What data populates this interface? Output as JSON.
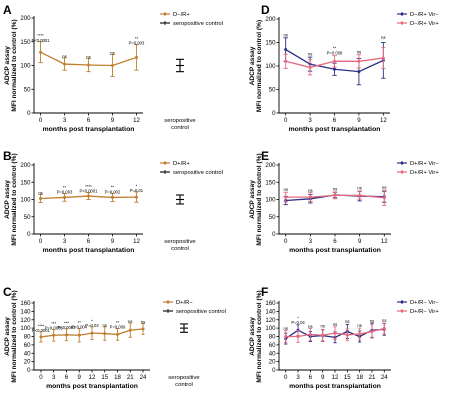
{
  "chart_data": [
    {
      "panel": "A",
      "type": "line",
      "ylabel": [
        "ADCP assay",
        "MFI normalized to control (%)"
      ],
      "xlabel": "months post transplantation",
      "ylim": [
        0,
        200
      ],
      "yticks": [
        0,
        50,
        100,
        150,
        200
      ],
      "x": [
        0,
        3,
        6,
        9,
        12
      ],
      "xticklabels": [
        "0",
        "3",
        "6",
        "9",
        "12"
      ],
      "series": [
        {
          "name": "D−/R+",
          "color": "#C07F2E",
          "values": [
            128,
            103,
            101,
            100,
            117
          ],
          "errors": [
            22,
            13,
            14,
            23,
            27
          ]
        }
      ],
      "control": {
        "label": [
          "seropositive",
          "control"
        ],
        "value": 100,
        "error": 13
      },
      "legend": {
        "series": [
          "D−/R+"
        ],
        "control": "seropositive control"
      },
      "annotations": [
        {
          "x": 0,
          "y": 150,
          "lines": [
            "****",
            "P<0.0001"
          ]
        },
        {
          "x": 3,
          "y": 116,
          "lines": [
            "ns"
          ]
        },
        {
          "x": 6,
          "y": 115,
          "lines": [
            "ns"
          ]
        },
        {
          "x": 9,
          "y": 123,
          "lines": [
            "ns"
          ]
        },
        {
          "x": 12,
          "y": 144,
          "lines": [
            "**",
            "P=0.003"
          ]
        }
      ]
    },
    {
      "panel": "B",
      "type": "line",
      "ylabel": [
        "ADCP assay",
        "MFI normalized to control (%)"
      ],
      "xlabel": "months post transplantation",
      "ylim": [
        0,
        200
      ],
      "yticks": [
        0,
        50,
        100,
        150,
        200
      ],
      "x": [
        0,
        3,
        6,
        9,
        12
      ],
      "xticklabels": [
        "0",
        "3",
        "6",
        "9",
        "12"
      ],
      "series": [
        {
          "name": "D+/R+",
          "color": "#C07F2E",
          "values": [
            103,
            106,
            110,
            106,
            107
          ],
          "errors": [
            12,
            11,
            10,
            12,
            15
          ]
        }
      ],
      "control": {
        "label": [
          "seropositive",
          "control"
        ],
        "value": 100,
        "error": 13
      },
      "legend": {
        "series": [
          "D+/R+"
        ],
        "control": "seropositive control"
      },
      "annotations": [
        {
          "x": 0,
          "y": 115,
          "lines": [
            "ns"
          ]
        },
        {
          "x": 3,
          "y": 117,
          "lines": [
            "**",
            "P=0.003"
          ]
        },
        {
          "x": 6,
          "y": 120,
          "lines": [
            "****",
            "P<0.0001"
          ]
        },
        {
          "x": 9,
          "y": 118,
          "lines": [
            "**",
            "P=0.002"
          ]
        },
        {
          "x": 12,
          "y": 122,
          "lines": [
            "*",
            "P=0.01"
          ]
        }
      ]
    },
    {
      "panel": "C",
      "type": "line",
      "ylabel": [
        "ADCP assay",
        "MFI normalized to control (%)"
      ],
      "xlabel": "months post transplantation",
      "ylim": [
        0,
        160
      ],
      "yticks": [
        0,
        20,
        40,
        60,
        80,
        100,
        120,
        140,
        160
      ],
      "x": [
        0,
        3,
        6,
        9,
        12,
        15,
        18,
        21,
        24
      ],
      "xticklabels": [
        "0",
        "3",
        "6",
        "9",
        "12",
        "15",
        "18",
        "21",
        "24"
      ],
      "series": [
        {
          "name": "D+/R−",
          "color": "#C07F2E",
          "values": [
            79,
            83,
            84,
            83,
            88,
            87,
            85,
            95,
            98
          ],
          "errors": [
            12,
            14,
            14,
            16,
            15,
            16,
            14,
            17,
            13
          ]
        }
      ],
      "control": {
        "label": [
          "seropositive",
          "control"
        ],
        "value": 100,
        "error": 10
      },
      "legend": {
        "series": [
          "D+/R−"
        ],
        "control": "seropositive control"
      },
      "annotations": [
        {
          "x": 0,
          "y": 91,
          "lines": [
            "****",
            "P<0.0001"
          ]
        },
        {
          "x": 3,
          "y": 97,
          "lines": [
            "***",
            "P=0.0005"
          ]
        },
        {
          "x": 6,
          "y": 98,
          "lines": [
            "***",
            "P=0.0003"
          ]
        },
        {
          "x": 9,
          "y": 99,
          "lines": [
            "**",
            "P=0.004"
          ]
        },
        {
          "x": 12,
          "y": 103,
          "lines": [
            "*",
            "P=0.02"
          ]
        },
        {
          "x": 15,
          "y": 103,
          "lines": [
            "ns"
          ]
        },
        {
          "x": 18,
          "y": 99,
          "lines": [
            "**",
            "P=0.009"
          ]
        },
        {
          "x": 21,
          "y": 112,
          "lines": [
            "ns"
          ]
        },
        {
          "x": 24,
          "y": 111,
          "lines": [
            "ns"
          ]
        }
      ]
    },
    {
      "panel": "D",
      "type": "line",
      "ylabel": [
        "ADCP assay",
        "MFI normalized to control (%)"
      ],
      "xlabel": "months post transplantation",
      "ylim": [
        0,
        200
      ],
      "yticks": [
        0,
        50,
        100,
        150,
        200
      ],
      "x": [
        0,
        3,
        6,
        9,
        12
      ],
      "xticklabels": [
        "0",
        "3",
        "6",
        "9",
        "12"
      ],
      "series": [
        {
          "name": "D−/R+ Vir−",
          "color": "#2B2F86",
          "values": [
            135,
            104,
            93,
            88,
            112
          ],
          "errors": [
            25,
            15,
            13,
            28,
            38
          ]
        },
        {
          "name": "D−/R+ Vir+",
          "color": "#E8687E",
          "values": [
            110,
            97,
            110,
            110,
            117
          ],
          "errors": [
            15,
            16,
            12,
            14,
            22
          ]
        }
      ],
      "legend": {
        "series": [
          "D−/R+ Vir−",
          "D−/R+ Vir+"
        ]
      },
      "annotations": [
        {
          "x": 0,
          "y": 163,
          "lines": [
            "ns"
          ]
        },
        {
          "x": 3,
          "y": 122,
          "lines": [
            "ns"
          ]
        },
        {
          "x": 6,
          "y": 125,
          "lines": [
            "**",
            "P=0.008"
          ]
        },
        {
          "x": 9,
          "y": 127,
          "lines": [
            "ns"
          ]
        },
        {
          "x": 12,
          "y": 157,
          "lines": [
            "ns"
          ]
        }
      ]
    },
    {
      "panel": "E",
      "type": "line",
      "ylabel": [
        "ADCP assay",
        "MFI normalized to control (%)"
      ],
      "xlabel": "months post transplantation",
      "ylim": [
        0,
        200
      ],
      "yticks": [
        0,
        50,
        100,
        150,
        200
      ],
      "x": [
        0,
        3,
        6,
        9,
        12
      ],
      "xticklabels": [
        "0",
        "3",
        "6",
        "9",
        "12"
      ],
      "series": [
        {
          "name": "D+/R+ Vir−",
          "color": "#2B2F86",
          "values": [
            97,
            102,
            113,
            110,
            108
          ],
          "errors": [
            12,
            12,
            8,
            14,
            16
          ]
        },
        {
          "name": "D+/R+ Vir+",
          "color": "#E8687E",
          "values": [
            107,
            107,
            112,
            112,
            105
          ],
          "errors": [
            14,
            13,
            10,
            11,
            22
          ]
        }
      ],
      "legend": {
        "series": [
          "D+/R+ Vir−",
          "D+/R+ Vir+"
        ]
      },
      "annotations": [
        {
          "x": 0,
          "y": 124,
          "lines": [
            "ns"
          ]
        },
        {
          "x": 3,
          "y": 122,
          "lines": [
            "ns"
          ]
        },
        {
          "x": 6,
          "y": 126,
          "lines": [
            "ns"
          ]
        },
        {
          "x": 9,
          "y": 129,
          "lines": [
            "ns"
          ]
        },
        {
          "x": 12,
          "y": 131,
          "lines": [
            "ns"
          ]
        }
      ]
    },
    {
      "panel": "F",
      "type": "line",
      "ylabel": [
        "ADCP assay",
        "MFI normalized to control (%)"
      ],
      "xlabel": "months post transplantation",
      "ylim": [
        0,
        160
      ],
      "yticks": [
        0,
        20,
        40,
        60,
        80,
        100,
        120,
        140,
        160
      ],
      "x": [
        0,
        3,
        6,
        9,
        12,
        15,
        18,
        21,
        24
      ],
      "xticklabels": [
        "0",
        "3",
        "6",
        "9",
        "12",
        "15",
        "18",
        "21",
        "24"
      ],
      "series": [
        {
          "name": "D+/R− Vir−",
          "color": "#2B2F86",
          "values": [
            75,
            95,
            80,
            82,
            78,
            92,
            80,
            95,
            97
          ],
          "errors": [
            13,
            13,
            12,
            14,
            13,
            17,
            13,
            17,
            14
          ]
        },
        {
          "name": "D+/R− Vir+",
          "color": "#E8687E",
          "values": [
            80,
            80,
            85,
            83,
            88,
            84,
            86,
            92,
            99
          ],
          "errors": [
            14,
            14,
            14,
            14,
            15,
            14,
            14,
            16,
            13
          ]
        }
      ],
      "legend": {
        "series": [
          "D+/R− Vir−",
          "D+/R− Vir+"
        ]
      },
      "annotations": [
        {
          "x": 0,
          "y": 96,
          "lines": [
            "ns"
          ]
        },
        {
          "x": 3,
          "y": 110,
          "lines": [
            "*",
            "P=0.04"
          ]
        },
        {
          "x": 6,
          "y": 100,
          "lines": [
            "ns"
          ]
        },
        {
          "x": 9,
          "y": 101,
          "lines": [
            "ns"
          ]
        },
        {
          "x": 12,
          "y": 105,
          "lines": [
            "ns"
          ]
        },
        {
          "x": 15,
          "y": 112,
          "lines": [
            "ns"
          ]
        },
        {
          "x": 18,
          "y": 103,
          "lines": [
            "ns"
          ]
        },
        {
          "x": 21,
          "y": 114,
          "lines": [
            "ns"
          ]
        },
        {
          "x": 24,
          "y": 115,
          "lines": [
            "ns"
          ]
        }
      ]
    }
  ]
}
